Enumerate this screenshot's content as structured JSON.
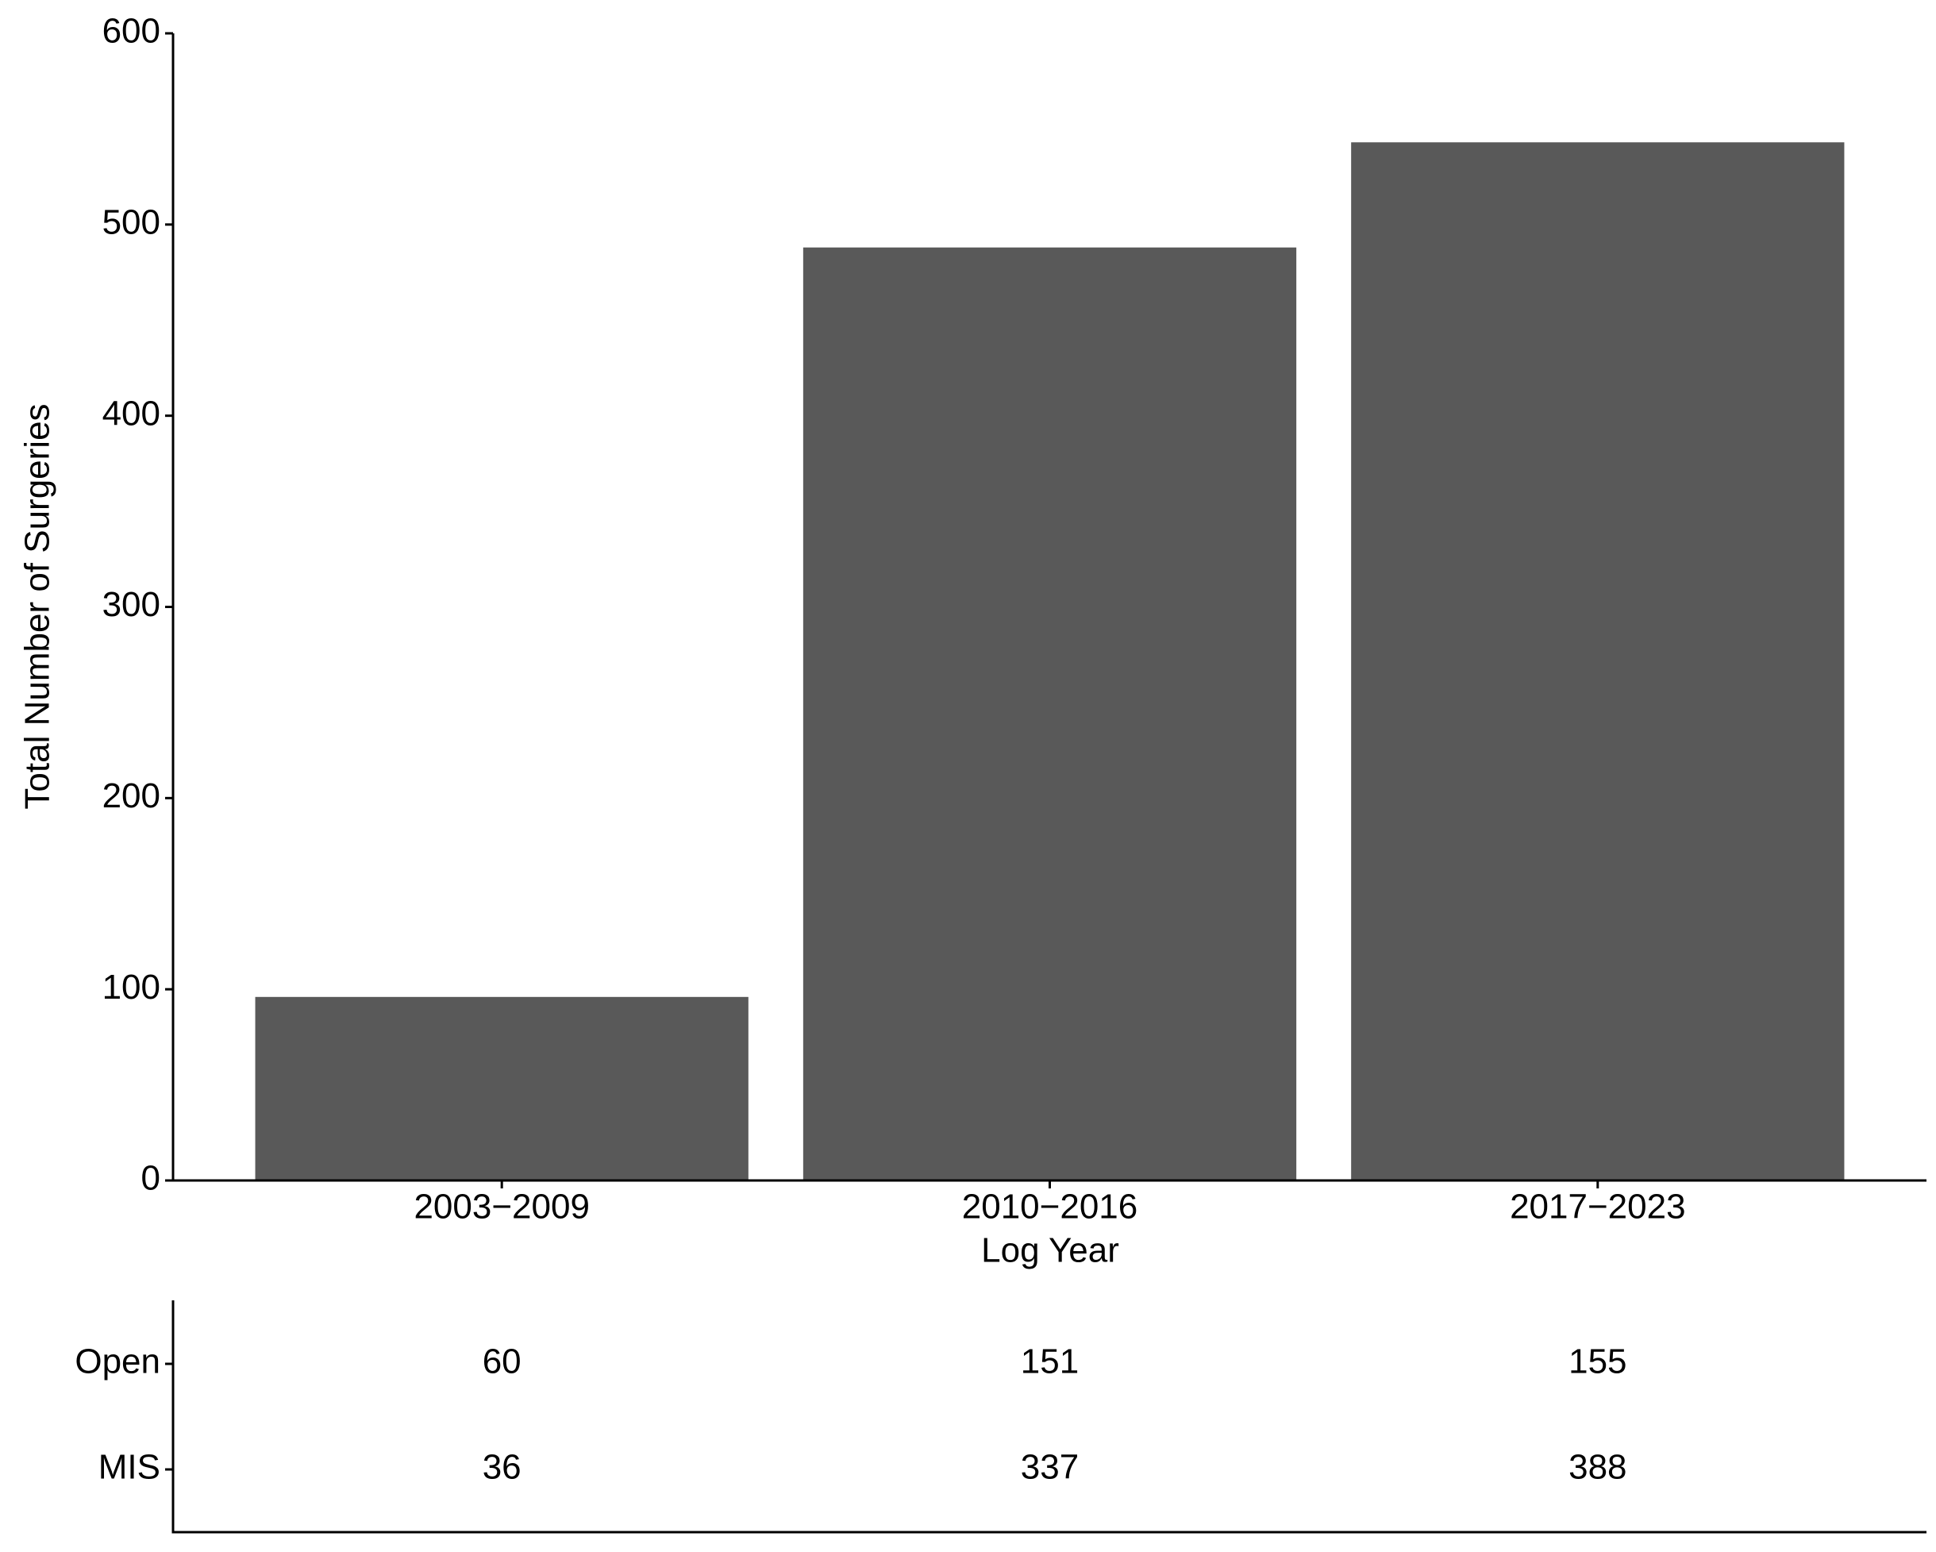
{
  "chart_data": {
    "type": "bar",
    "x_label": "Log Year",
    "y_label": "Total Number of Surgeries",
    "categories": [
      "2003−2009",
      "2010−2016",
      "2017−2023"
    ],
    "values": [
      96,
      488,
      543
    ],
    "color": "#595959",
    "ylim": [
      0,
      600
    ],
    "yticks": [
      0,
      100,
      200,
      300,
      400,
      500,
      600
    ],
    "grid": false,
    "table": {
      "row_labels": [
        "Open",
        "MIS"
      ],
      "rows": [
        [
          60,
          151,
          155
        ],
        [
          36,
          337,
          388
        ]
      ]
    }
  }
}
